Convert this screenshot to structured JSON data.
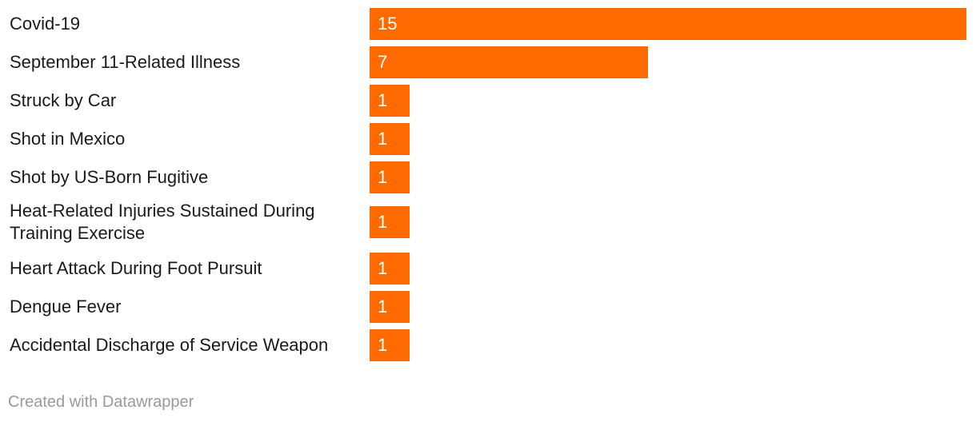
{
  "chart_data": {
    "type": "bar",
    "orientation": "horizontal",
    "categories": [
      "Covid-19",
      "September 11-Related Illness",
      "Struck by Car",
      "Shot in Mexico",
      "Shot by US-Born Fugitive",
      "Heat-Related Injuries Sustained During Training Exercise",
      "Heart Attack During Foot Pursuit",
      "Dengue Fever",
      "Accidental Discharge of Service Weapon"
    ],
    "values": [
      15,
      7,
      1,
      1,
      1,
      1,
      1,
      1,
      1
    ],
    "xlim": [
      0,
      15
    ],
    "bar_color": "#ff6a00",
    "data_labels": true,
    "grid": false
  },
  "footer": {
    "credit": "Created with Datawrapper"
  }
}
